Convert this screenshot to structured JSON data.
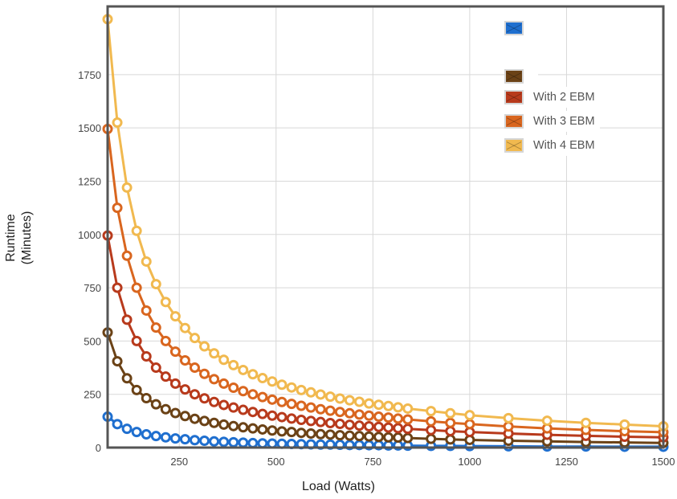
{
  "chart_data": {
    "type": "line",
    "title": "",
    "xlabel": "Load (Watts)",
    "ylabel_lines": [
      "Runtime",
      "(Minutes)"
    ],
    "xlim": [
      65,
      1500
    ],
    "ylim": [
      0,
      2070
    ],
    "x_ticks": [
      "250",
      "500",
      "750",
      "1000",
      "1250",
      "1500"
    ],
    "x_tick_values": [
      250,
      500,
      750,
      1000,
      1250,
      1500
    ],
    "y_ticks": [
      "0",
      "250",
      "500",
      "750",
      "1000",
      "1250",
      "1500",
      "1750"
    ],
    "y_tick_values": [
      0,
      250,
      500,
      750,
      1000,
      1250,
      1500,
      1750
    ],
    "grid": true,
    "legend_position": "top-right",
    "x": [
      65,
      90,
      115,
      140,
      165,
      190,
      215,
      240,
      265,
      290,
      315,
      340,
      365,
      390,
      415,
      440,
      465,
      490,
      515,
      540,
      565,
      590,
      615,
      640,
      665,
      690,
      715,
      740,
      765,
      790,
      815,
      840,
      900,
      950,
      1000,
      1100,
      1200,
      1300,
      1400,
      1500
    ],
    "series": [
      {
        "name": "",
        "color": "#1f6fcf",
        "values": [
          145,
          110,
          88,
          73,
          62,
          54,
          48,
          43,
          39,
          35,
          32,
          29,
          27,
          25,
          23,
          21,
          20,
          19,
          18,
          17,
          16,
          15,
          14,
          14,
          13,
          12,
          12,
          11,
          11,
          10,
          10,
          9,
          8,
          8,
          7,
          6,
          5,
          5,
          4,
          4
        ]
      },
      {
        "name": "",
        "color": "#6b4216",
        "values": [
          540,
          405,
          325,
          270,
          232,
          203,
          180,
          162,
          148,
          135,
          125,
          116,
          108,
          101,
          95,
          90,
          85,
          80,
          76,
          73,
          69,
          66,
          63,
          61,
          58,
          56,
          54,
          52,
          50,
          48,
          47,
          45,
          41,
          38,
          36,
          32,
          29,
          26,
          24,
          22
        ]
      },
      {
        "name": "With 2 EBM",
        "color": "#b83a1c",
        "values": [
          995,
          750,
          600,
          500,
          428,
          375,
          333,
          300,
          273,
          250,
          231,
          214,
          200,
          188,
          177,
          167,
          158,
          150,
          143,
          136,
          130,
          125,
          120,
          115,
          111,
          107,
          103,
          100,
          97,
          94,
          91,
          88,
          82,
          77,
          73,
          66,
          60,
          55,
          51,
          48
        ]
      },
      {
        "name": "With 3 EBM",
        "color": "#d9661f",
        "values": [
          1495,
          1125,
          900,
          750,
          643,
          563,
          500,
          450,
          409,
          375,
          346,
          321,
          300,
          281,
          265,
          250,
          237,
          225,
          214,
          205,
          196,
          188,
          180,
          173,
          167,
          161,
          155,
          150,
          145,
          141,
          136,
          132,
          123,
          116,
          110,
          99,
          90,
          83,
          77,
          72
        ]
      },
      {
        "name": "With 4 EBM",
        "color": "#f1b94f",
        "values": [
          2010,
          1525,
          1220,
          1017,
          873,
          767,
          683,
          616,
          561,
          514,
          475,
          442,
          412,
          387,
          364,
          344,
          326,
          310,
          295,
          282,
          270,
          259,
          249,
          239,
          230,
          222,
          215,
          207,
          201,
          195,
          189,
          183,
          171,
          161,
          152,
          138,
          126,
          116,
          108,
          100
        ]
      }
    ]
  }
}
